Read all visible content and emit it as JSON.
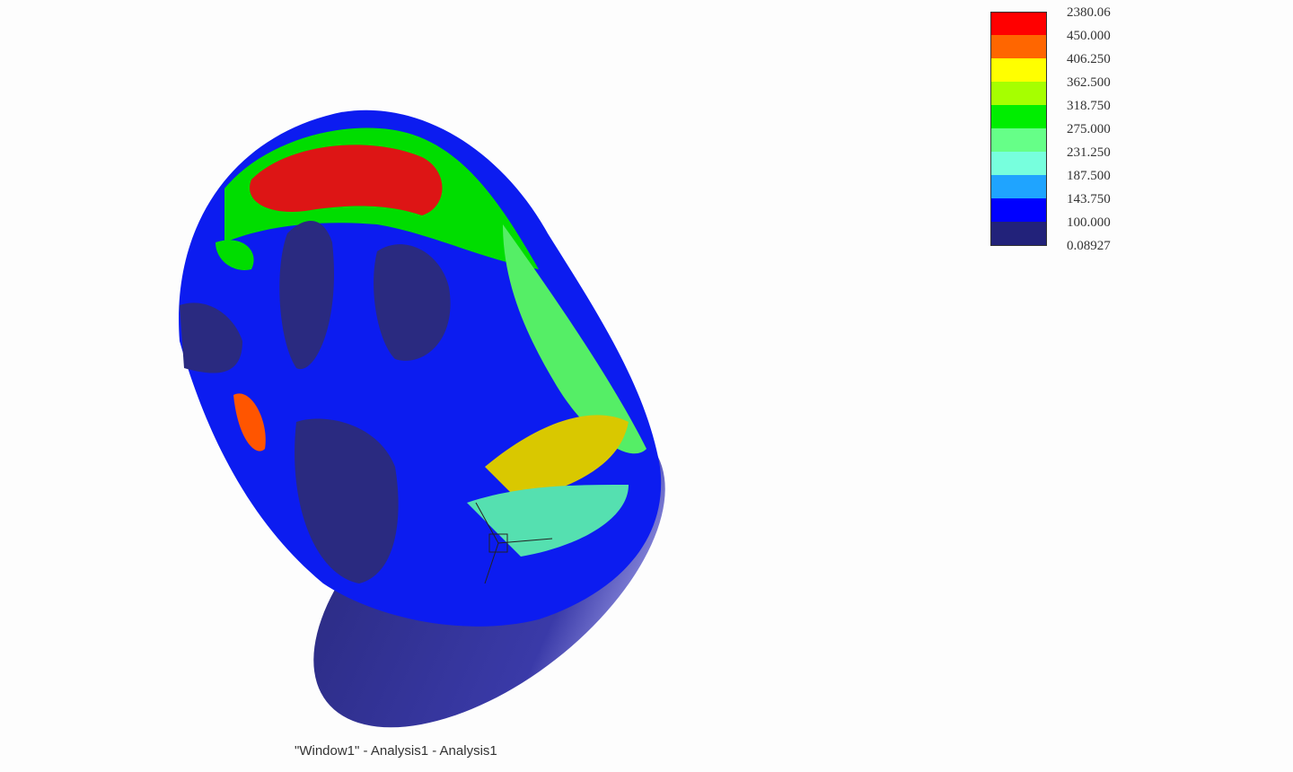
{
  "legend": {
    "labels": [
      "2380.06",
      "450.000",
      "406.250",
      "362.500",
      "318.750",
      "275.000",
      "231.250",
      "187.500",
      "143.750",
      "100.000",
      "0.08927"
    ],
    "colors": [
      "#ff0000",
      "#ff6600",
      "#ffff00",
      "#a6ff00",
      "#00ee00",
      "#66ff88",
      "#77ffdd",
      "#1fa4ff",
      "#0000ff",
      "#22227a"
    ]
  },
  "caption": "\"Window1\" - Analysis1 - Analysis1",
  "triad_icon": "axis-triad-icon"
}
